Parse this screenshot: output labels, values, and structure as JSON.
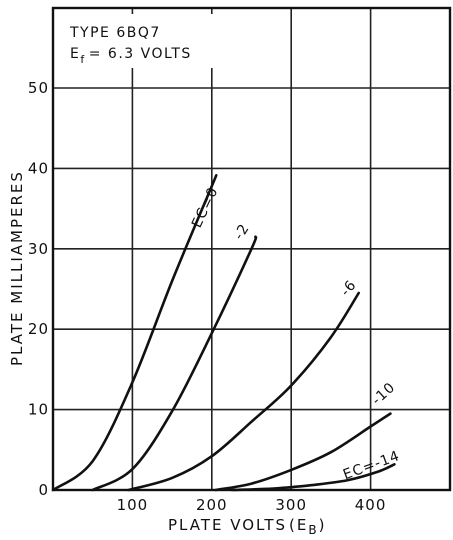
{
  "chart_data": {
    "type": "line",
    "title_lines": [
      "TYPE 6BQ7",
      "E",
      "f",
      "= 6.3 VOLTS"
    ],
    "xlabel": "PLATE VOLTS",
    "xlabel_paren": "(E",
    "xlabel_sub": "B",
    "xlabel_close": ")",
    "ylabel": "PLATE MILLIAMPERES",
    "xlim": [
      0,
      500
    ],
    "ylim": [
      0,
      60
    ],
    "x_ticks": [
      100,
      200,
      300,
      400
    ],
    "y_ticks": [
      0,
      10,
      20,
      30,
      40,
      50
    ],
    "grid": true,
    "series": [
      {
        "name": "EC=0",
        "x": [
          0,
          50,
          100,
          150,
          200,
          205
        ],
        "y": [
          0,
          3.6,
          13.4,
          26,
          37.8,
          39
        ]
      },
      {
        "name": "-2",
        "x": [
          50,
          100,
          150,
          200,
          250,
          255
        ],
        "y": [
          0,
          2.6,
          9.8,
          19.5,
          30,
          31.5
        ]
      },
      {
        "name": "-6",
        "x": [
          95,
          150,
          200,
          250,
          300,
          350,
          385
        ],
        "y": [
          0,
          1.5,
          4.2,
          8.5,
          13,
          19,
          24.5
        ]
      },
      {
        "name": "-10",
        "x": [
          205,
          250,
          300,
          350,
          400,
          425
        ],
        "y": [
          0,
          0.8,
          2.5,
          4.7,
          7.9,
          9.5
        ]
      },
      {
        "name": "EC=-14",
        "x": [
          225,
          280,
          325,
          370,
          410,
          430
        ],
        "y": [
          0,
          0.2,
          0.6,
          1.2,
          2.3,
          3.2
        ]
      }
    ],
    "series_labels": {
      "EC=0": "EC=0",
      "-2": "-2",
      "-6": "-6",
      "-10": "-10",
      "EC=-14": "EC=-14"
    }
  }
}
